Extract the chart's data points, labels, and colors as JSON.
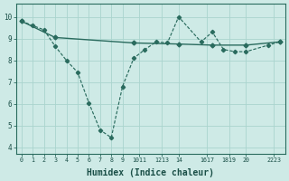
{
  "xlabel": "Humidex (Indice chaleur)",
  "bg_color": "#ceeae6",
  "grid_color": "#aad4ce",
  "line_color": "#2a6b5e",
  "text_color": "#1a4f47",
  "xlim": [
    -0.5,
    23.5
  ],
  "ylim": [
    3.7,
    10.6
  ],
  "series1_x": [
    0,
    1,
    2,
    3,
    4,
    5,
    6,
    7,
    8,
    9,
    10,
    11,
    12,
    13,
    14,
    16,
    17,
    18,
    19,
    20,
    22,
    23
  ],
  "series1_y": [
    9.8,
    9.6,
    9.4,
    8.65,
    8.0,
    7.45,
    6.05,
    4.8,
    4.45,
    6.8,
    8.1,
    8.5,
    8.85,
    8.8,
    10.0,
    8.85,
    9.3,
    8.5,
    8.4,
    8.4,
    8.7,
    8.85
  ],
  "series2_x": [
    0,
    3,
    10,
    14,
    17,
    20,
    23
  ],
  "series2_y": [
    9.8,
    9.05,
    8.8,
    8.75,
    8.7,
    8.7,
    8.85
  ],
  "yticks": [
    4,
    5,
    6,
    7,
    8,
    9,
    10
  ],
  "xtick_positions": [
    0,
    1,
    2,
    3,
    4,
    5,
    6,
    7,
    8,
    9,
    10.5,
    12.5,
    14,
    16.5,
    18.5,
    20,
    22.5
  ],
  "xtick_labels": [
    "0",
    "1",
    "2",
    "3",
    "4",
    "5",
    "6",
    "7",
    "8",
    "9",
    "1011",
    "1213",
    "14",
    "1617",
    "1819",
    "20",
    "2223"
  ]
}
